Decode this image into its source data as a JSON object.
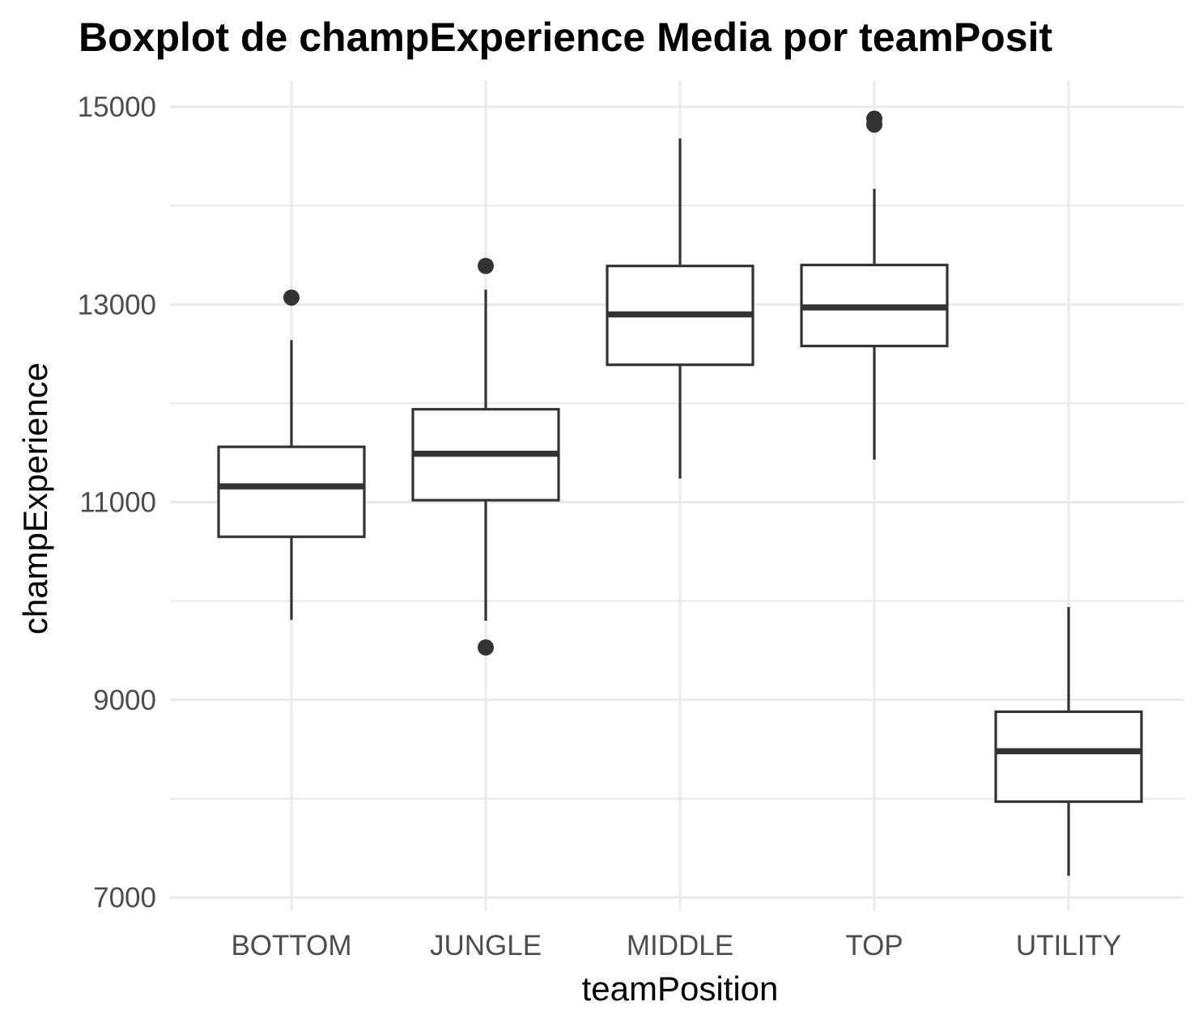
{
  "chart_data": {
    "type": "boxplot",
    "title": "Boxplot de champExperience Media por teamPosit",
    "xlabel": "teamPosition",
    "ylabel": "champExperience",
    "ylim": [
      6850,
      15250
    ],
    "y_ticks": [
      7000,
      9000,
      11000,
      13000,
      15000
    ],
    "y_tick_labels": [
      "7000",
      "9000",
      "11000",
      "13000",
      "15000"
    ],
    "categories": [
      "BOTTOM",
      "JUNGLE",
      "MIDDLE",
      "TOP",
      "UTILITY"
    ],
    "grid": true,
    "legend": "none",
    "colors": {
      "box_outline": "#333333",
      "box_fill": "#ffffff",
      "grid": "#ebebeb",
      "tick_text": "#4d4d4d"
    },
    "boxes": [
      {
        "category": "BOTTOM",
        "whisker_low": 9810,
        "q1": 10650,
        "median": 11160,
        "q3": 11560,
        "whisker_high": 12640,
        "outliers": [
          13070
        ]
      },
      {
        "category": "JUNGLE",
        "whisker_low": 9800,
        "q1": 11020,
        "median": 11490,
        "q3": 11940,
        "whisker_high": 13150,
        "outliers": [
          13390,
          9530
        ]
      },
      {
        "category": "MIDDLE",
        "whisker_low": 11240,
        "q1": 12390,
        "median": 12900,
        "q3": 13390,
        "whisker_high": 14680,
        "outliers": []
      },
      {
        "category": "TOP",
        "whisker_low": 11430,
        "q1": 12580,
        "median": 12970,
        "q3": 13400,
        "whisker_high": 14170,
        "outliers": [
          14880,
          14820
        ]
      },
      {
        "category": "UTILITY",
        "whisker_low": 7220,
        "q1": 7970,
        "median": 8480,
        "q3": 8880,
        "whisker_high": 9940,
        "outliers": []
      }
    ]
  }
}
